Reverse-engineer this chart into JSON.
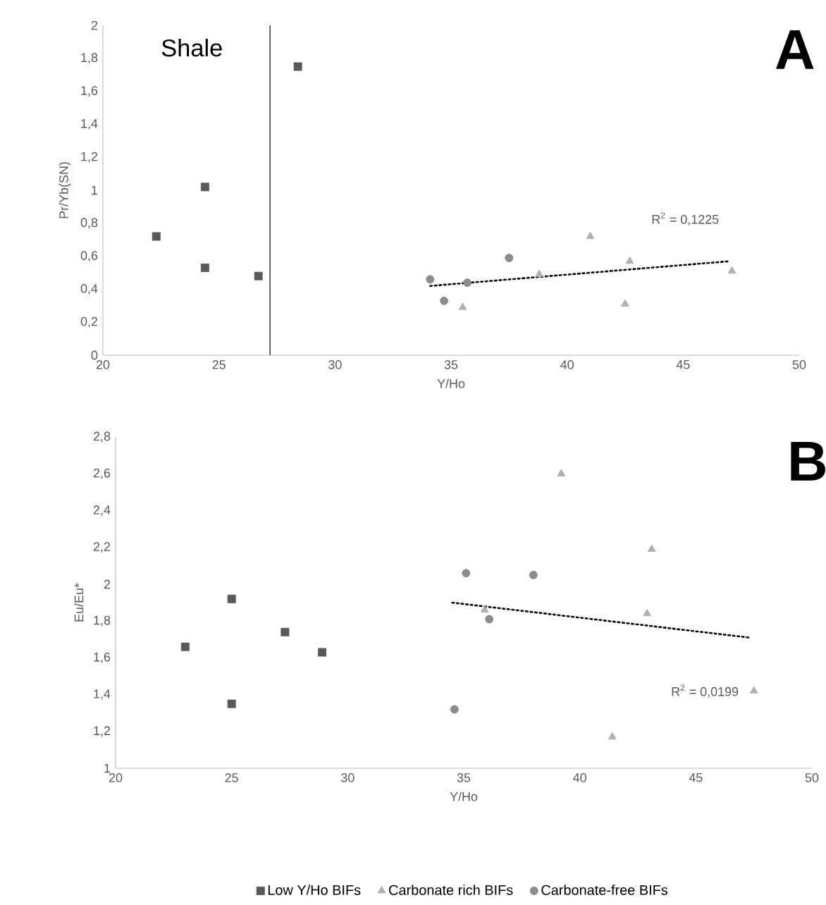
{
  "chart_data": [
    {
      "type": "scatter",
      "xlabel": "Y/Ho",
      "ylabel": "Pr/Yb(SN)",
      "xlim": [
        20,
        50
      ],
      "xticks": [
        20,
        25,
        30,
        35,
        40,
        45,
        50
      ],
      "ylim": [
        0,
        2
      ],
      "yticks": [
        0,
        {
          "value": 0.2,
          "label": "0,2"
        },
        {
          "value": 0.4,
          "label": "0,4"
        },
        {
          "value": 0.6,
          "label": "0,6"
        },
        {
          "value": 0.8,
          "label": "0,8"
        },
        1,
        {
          "value": 1.2,
          "label": "1,2"
        },
        {
          "value": 1.4,
          "label": "1,4"
        },
        {
          "value": 1.6,
          "label": "1,6"
        },
        {
          "value": 1.8,
          "label": "1,8"
        },
        2
      ],
      "series": [
        {
          "color": "#595959",
          "marker": "square",
          "x": [
            22.3,
            24.4,
            24.4,
            26.7,
            28.4
          ],
          "values": [
            0.72,
            1.02,
            0.53,
            0.48,
            1.75
          ]
        },
        {
          "color": "#b0b0b0",
          "marker": "triangle",
          "x": [
            35.5,
            38.8,
            41.0,
            42.5,
            42.7,
            47.1
          ],
          "values": [
            0.29,
            0.49,
            0.72,
            0.31,
            0.57,
            0.51
          ]
        },
        {
          "color": "#8c8c8c",
          "marker": "circle",
          "x": [
            34.1,
            34.7,
            35.7,
            37.5
          ],
          "values": [
            0.46,
            0.33,
            0.44,
            0.59
          ]
        },
        {
          "type": "line",
          "color": "#000000",
          "line_style": "dotted",
          "marker": "none",
          "x": [
            34.1,
            47.0
          ],
          "values": [
            0.42,
            0.57
          ]
        }
      ],
      "ref_lines": [
        {
          "axis": "x",
          "value": 27.2,
          "label": "Shale",
          "color": "#404040"
        }
      ],
      "annotations": [
        "A",
        "R$^{2}$ = 0,1225"
      ]
    },
    {
      "type": "scatter",
      "xlabel": "Y/Ho",
      "ylabel": "Eu/Eu*",
      "xlim": [
        20,
        50
      ],
      "xticks": [
        20,
        25,
        30,
        35,
        40,
        45,
        50
      ],
      "ylim": [
        1,
        2.8
      ],
      "yticks": [
        1,
        {
          "value": 1.2,
          "label": "1,2"
        },
        {
          "value": 1.4,
          "label": "1,4"
        },
        {
          "value": 1.6,
          "label": "1,6"
        },
        {
          "value": 1.8,
          "label": "1,8"
        },
        2,
        {
          "value": 2.2,
          "label": "2,2"
        },
        {
          "value": 2.4,
          "label": "2,4"
        },
        {
          "value": 2.6,
          "label": "2,6"
        },
        {
          "value": 2.8,
          "label": "2,8"
        }
      ],
      "legend": "bottom",
      "series": [
        {
          "name": "Low Y/Ho BIFs",
          "color": "#595959",
          "marker": "square",
          "x": [
            23.0,
            25.0,
            25.0,
            27.3,
            28.9
          ],
          "values": [
            1.66,
            1.92,
            1.35,
            1.74,
            1.63
          ]
        },
        {
          "name": "Carbonate rich BIFs",
          "color": "#b0b0b0",
          "marker": "triangle",
          "x": [
            39.2,
            43.1,
            42.9,
            35.9,
            41.4,
            47.5
          ],
          "values": [
            2.6,
            2.19,
            1.84,
            1.86,
            1.17,
            1.42
          ]
        },
        {
          "name": "Carbonate-free BIFs",
          "color": "#8c8c8c",
          "marker": "circle",
          "x": [
            35.1,
            38.0,
            36.1,
            34.6
          ],
          "values": [
            2.06,
            2.05,
            1.81,
            1.32
          ]
        },
        {
          "type": "line",
          "color": "#000000",
          "line_style": "dotted",
          "marker": "none",
          "x": [
            34.5,
            47.3
          ],
          "values": [
            1.9,
            1.71
          ]
        }
      ],
      "annotations": [
        "B",
        "R$^{2}$ = 0,0199"
      ]
    }
  ]
}
